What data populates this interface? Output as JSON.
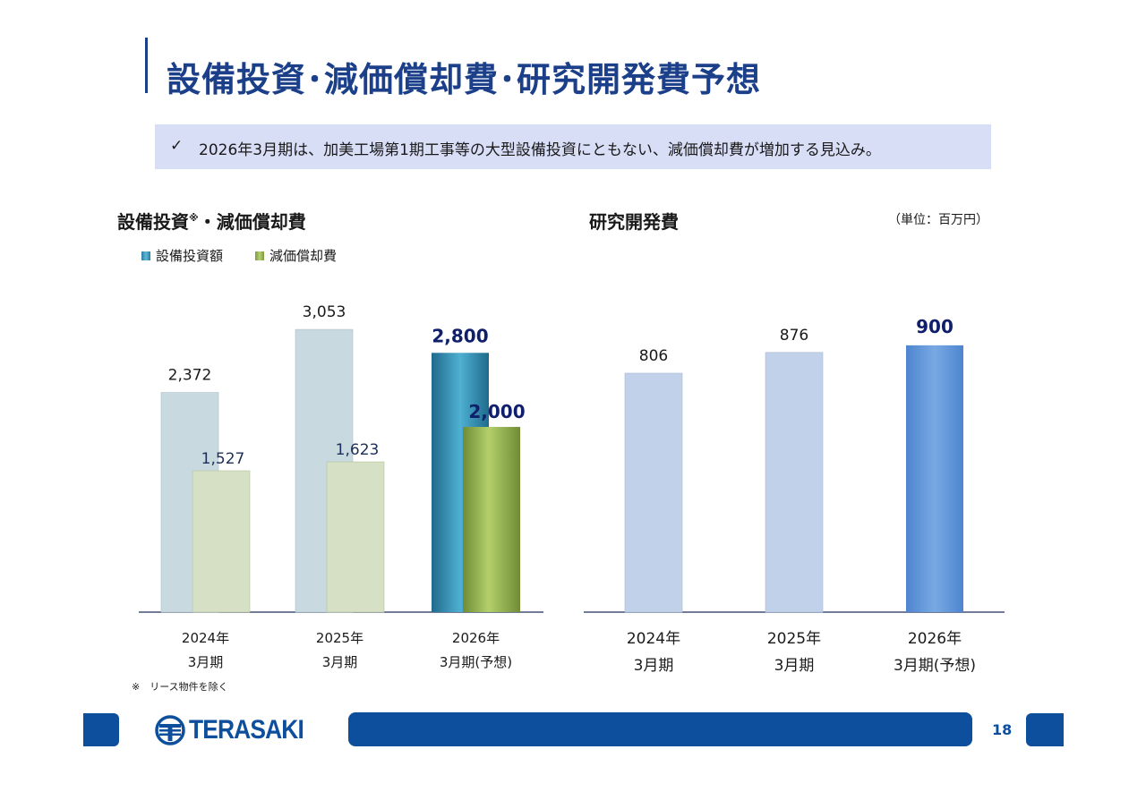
{
  "page": {
    "title": "設備投資･減価償却費･研究開発費予想",
    "note_check": "✓",
    "note": "2026年3月期は、加美工場第1期工事等の大型設備投資にともない、減価償却費が増加する見込み。",
    "unit": "（単位：百万円）",
    "footnote": "※　リース物件を除く",
    "logo_text": "TERASAKI",
    "page_number": "18"
  },
  "left_chart": {
    "title": "設備投資",
    "title_mark": "※",
    "title_suffix": "・減価償却費",
    "legend": [
      "設備投資額",
      "減価償却費"
    ]
  },
  "right_chart": {
    "title": "研究開発費"
  },
  "chart_data": [
    {
      "type": "bar",
      "title": "設備投資※・減価償却費",
      "categories": [
        [
          "2024年",
          "3月期"
        ],
        [
          "2025年",
          "3月期"
        ],
        [
          "2026年",
          "3月期(予想)"
        ]
      ],
      "series": [
        {
          "name": "設備投資額",
          "values": [
            2372,
            3053,
            2800
          ],
          "labels": [
            "2,372",
            "3,053",
            "2,800"
          ]
        },
        {
          "name": "減価償却費",
          "values": [
            1527,
            1623,
            2000
          ],
          "labels": [
            "1,527",
            "1,623",
            "2,000"
          ]
        }
      ],
      "highlight_index": 2,
      "ylim": [
        0,
        3500
      ]
    },
    {
      "type": "bar",
      "title": "研究開発費",
      "categories": [
        [
          "2024年",
          "3月期"
        ],
        [
          "2025年",
          "3月期"
        ],
        [
          "2026年",
          "3月期(予想)"
        ]
      ],
      "series": [
        {
          "name": "研究開発費",
          "values": [
            806,
            876,
            900
          ],
          "labels": [
            "806",
            "876",
            "900"
          ]
        }
      ],
      "highlight_index": 2,
      "ylim": [
        0,
        1020
      ]
    }
  ],
  "colors": {
    "brand_blue": "#0d4f9c",
    "title_blue": "#1c3f8a",
    "capex_past": "#c8d9e0",
    "dep_past": "#d6e0c4",
    "rd_past": "#c2d1ea",
    "label_highlight": "#0f1f6b"
  }
}
